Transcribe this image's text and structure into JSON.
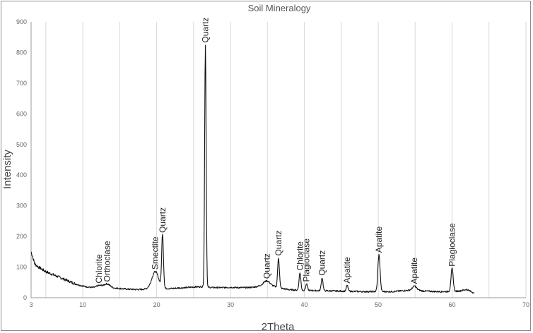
{
  "chart_data": {
    "type": "line",
    "title": "Soil Mineralogy",
    "xlabel": "2Theta",
    "ylabel": "Intensity",
    "xlim": [
      3,
      70
    ],
    "ylim": [
      0,
      900
    ],
    "x_ticks": [
      3,
      10,
      20,
      30,
      40,
      50,
      60,
      70
    ],
    "x_tick_labels": [
      "3",
      "10",
      "20",
      "30",
      "40",
      "50",
      "60",
      "70"
    ],
    "y_ticks": [
      0,
      100,
      200,
      300,
      400,
      500,
      600,
      700,
      800,
      900
    ],
    "y_tick_labels": [
      "0",
      "100",
      "200",
      "300",
      "400",
      "500",
      "600",
      "700",
      "800",
      "900"
    ],
    "grid": "vertical",
    "baseline": [
      [
        3,
        150
      ],
      [
        3.5,
        110
      ],
      [
        4,
        100
      ],
      [
        5,
        85
      ],
      [
        6,
        75
      ],
      [
        7,
        65
      ],
      [
        8,
        55
      ],
      [
        9,
        45
      ],
      [
        10,
        38
      ],
      [
        11,
        34
      ],
      [
        12,
        32
      ],
      [
        13,
        35
      ],
      [
        14,
        32
      ],
      [
        15,
        30
      ],
      [
        16,
        28
      ],
      [
        17,
        27
      ],
      [
        18,
        27
      ],
      [
        19,
        30
      ],
      [
        20,
        34
      ],
      [
        21,
        30
      ],
      [
        22,
        30
      ],
      [
        23,
        32
      ],
      [
        24,
        33
      ],
      [
        25,
        35
      ],
      [
        26,
        36
      ],
      [
        27,
        34
      ],
      [
        28,
        33
      ],
      [
        29,
        33
      ],
      [
        30,
        34
      ],
      [
        31,
        33
      ],
      [
        32,
        33
      ],
      [
        33,
        34
      ],
      [
        34,
        38
      ],
      [
        35,
        40
      ],
      [
        36,
        36
      ],
      [
        37,
        30
      ],
      [
        38,
        26
      ],
      [
        39,
        25
      ],
      [
        40,
        24
      ],
      [
        42,
        23
      ],
      [
        44,
        22
      ],
      [
        46,
        21
      ],
      [
        48,
        20
      ],
      [
        50,
        20
      ],
      [
        52,
        20
      ],
      [
        54,
        24
      ],
      [
        55,
        28
      ],
      [
        56,
        22
      ],
      [
        58,
        20
      ],
      [
        60,
        20
      ],
      [
        61,
        22
      ],
      [
        62,
        27
      ],
      [
        63,
        15
      ]
    ],
    "peaks": [
      {
        "x": 12.2,
        "intensity": 40,
        "label": "Chlorite",
        "width": 0.35
      },
      {
        "x": 13.3,
        "intensity": 45,
        "label": "Orthoclase",
        "width": 0.4
      },
      {
        "x": 19.8,
        "intensity": 85,
        "label": "Smectite",
        "width": 0.45
      },
      {
        "x": 20.8,
        "intensity": 205,
        "label": "Quartz",
        "width": 0.12
      },
      {
        "x": 26.6,
        "intensity": 825,
        "label": "Quartz",
        "width": 0.1
      },
      {
        "x": 34.9,
        "intensity": 55,
        "label": "Quartz",
        "width": 0.45
      },
      {
        "x": 36.5,
        "intensity": 130,
        "label": "Quartz",
        "width": 0.12
      },
      {
        "x": 39.4,
        "intensity": 82,
        "label": "Chlorite",
        "width": 0.12
      },
      {
        "x": 40.3,
        "intensity": 45,
        "label": "Plagioclase",
        "width": 0.12
      },
      {
        "x": 42.4,
        "intensity": 65,
        "label": "Quartz",
        "width": 0.12
      },
      {
        "x": 45.8,
        "intensity": 40,
        "label": "Apatite",
        "width": 0.12
      },
      {
        "x": 50.1,
        "intensity": 140,
        "label": "Apatite",
        "width": 0.15
      },
      {
        "x": 54.9,
        "intensity": 38,
        "label": "Apatite",
        "width": 0.25
      },
      {
        "x": 60.0,
        "intensity": 95,
        "label": "Plagioclase",
        "width": 0.15
      }
    ]
  }
}
